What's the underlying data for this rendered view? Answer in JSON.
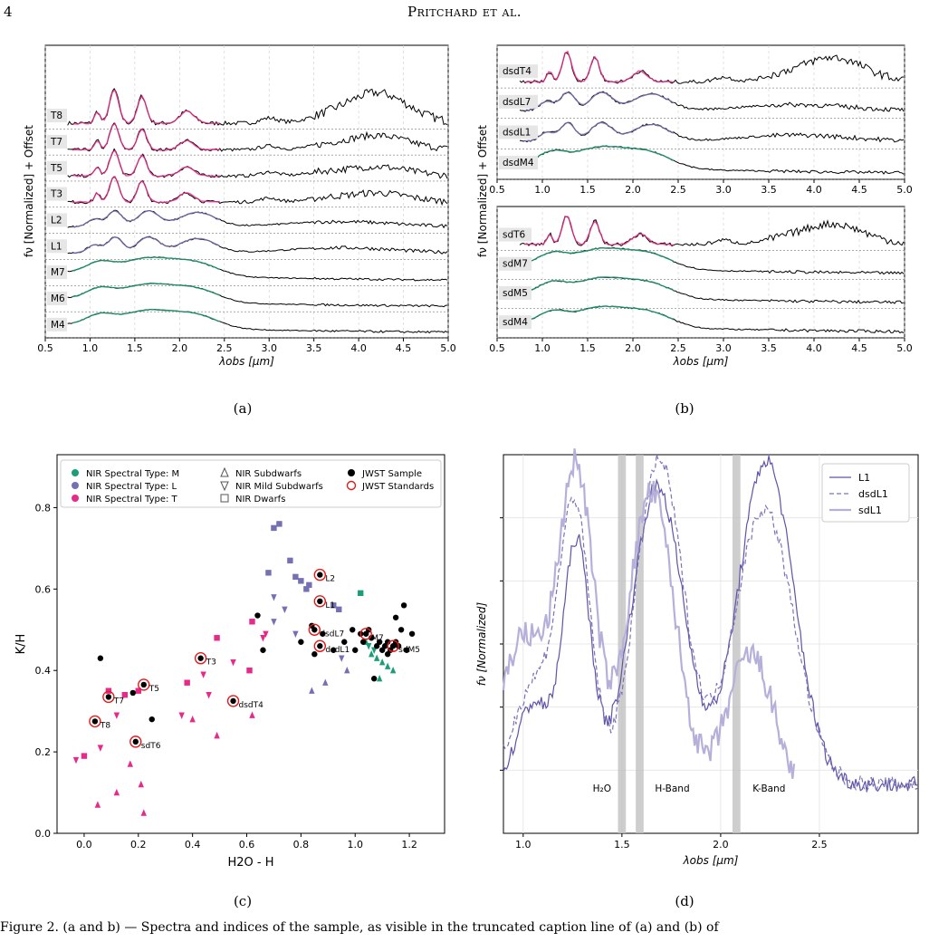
{
  "header": {
    "page_number": "4",
    "running_head": "Pritchard et al."
  },
  "panels": {
    "a": {
      "label": "(a)"
    },
    "b": {
      "label": "(b)"
    },
    "c": {
      "label": "(c)"
    },
    "d": {
      "label": "(d)"
    }
  },
  "caption": "Figure 2. (a and b) — Spectra and indices of the sample, as visible in the truncated caption line of (a) and (b) of",
  "chart_data": [
    {
      "type": "line",
      "panel": "a",
      "xlabel": "λobs [µm]",
      "ylabel": "fν [Normalized] + Offset",
      "xlim": [
        0.5,
        5.0
      ],
      "xticks": [
        "0.5",
        "1.0",
        "1.5",
        "2.0",
        "2.5",
        "3.0",
        "3.5",
        "4.0",
        "4.5",
        "5.0"
      ],
      "series": [
        {
          "name": "T8",
          "color": "#e7298a"
        },
        {
          "name": "T7",
          "color": "#e7298a"
        },
        {
          "name": "T5",
          "color": "#e7298a"
        },
        {
          "name": "T3",
          "color": "#e7298a"
        },
        {
          "name": "L2",
          "color": "#7570b3"
        },
        {
          "name": "L1",
          "color": "#7570b3"
        },
        {
          "name": "M7",
          "color": "#1b9e77"
        },
        {
          "name": "M6",
          "color": "#1b9e77"
        },
        {
          "name": "M4",
          "color": "#1b9e77"
        }
      ]
    },
    {
      "type": "line",
      "panel": "b-top",
      "xlabel": "",
      "ylabel": "fν [Normalized] + Offset",
      "xlim": [
        0.5,
        5.0
      ],
      "xticks": [
        "0.5",
        "1.0",
        "1.5",
        "2.0",
        "2.5",
        "3.0",
        "3.5",
        "4.0",
        "4.5",
        "5.0"
      ],
      "series": [
        {
          "name": "dsdT4",
          "color": "#e7298a"
        },
        {
          "name": "dsdL7",
          "color": "#7570b3"
        },
        {
          "name": "dsdL1",
          "color": "#7570b3"
        },
        {
          "name": "dsdM4",
          "color": "#1b9e77"
        }
      ]
    },
    {
      "type": "line",
      "panel": "b-bottom",
      "xlabel": "λobs [µm]",
      "xlim": [
        0.5,
        5.0
      ],
      "xticks": [
        "0.5",
        "1.0",
        "1.5",
        "2.0",
        "2.5",
        "3.0",
        "3.5",
        "4.0",
        "4.5",
        "5.0"
      ],
      "series": [
        {
          "name": "sdT6",
          "color": "#e7298a"
        },
        {
          "name": "sdM7",
          "color": "#1b9e77"
        },
        {
          "name": "sdM5",
          "color": "#1b9e77"
        },
        {
          "name": "sdM4",
          "color": "#1b9e77"
        }
      ]
    },
    {
      "type": "scatter",
      "panel": "c",
      "xlabel": "H2O - H",
      "ylabel": "K/H",
      "xlim": [
        -0.1,
        1.33
      ],
      "ylim": [
        0.0,
        0.93
      ],
      "xticks": [
        "0.0",
        "0.2",
        "0.4",
        "0.6",
        "0.8",
        "1.0",
        "1.2"
      ],
      "yticks": [
        "0.0",
        "0.2",
        "0.4",
        "0.6",
        "0.8"
      ],
      "legend": [
        {
          "label": "NIR Spectral Type: M",
          "marker": "circle",
          "color": "#1b9e77"
        },
        {
          "label": "NIR Spectral Type: L",
          "marker": "circle",
          "color": "#7570b3"
        },
        {
          "label": "NIR Spectral Type: T",
          "marker": "circle",
          "color": "#e7298a"
        },
        {
          "label": "NIR Subdwarfs",
          "marker": "triangle-up",
          "color": "#555555"
        },
        {
          "label": "NIR Mild Subdwarfs",
          "marker": "triangle-down",
          "color": "#555555"
        },
        {
          "label": "NIR Dwarfs",
          "marker": "square",
          "color": "#555555"
        },
        {
          "label": "JWST Sample",
          "marker": "circle",
          "color": "#000000"
        },
        {
          "label": "JWST Standards",
          "marker": "ring",
          "color": "#e41a1c"
        }
      ],
      "standards": [
        {
          "name": "T8",
          "x": 0.04,
          "y": 0.275
        },
        {
          "name": "T7",
          "x": 0.09,
          "y": 0.335
        },
        {
          "name": "T5",
          "x": 0.22,
          "y": 0.365
        },
        {
          "name": "sdT6",
          "x": 0.19,
          "y": 0.225
        },
        {
          "name": "T3",
          "x": 0.43,
          "y": 0.43
        },
        {
          "name": "dsdT4",
          "x": 0.55,
          "y": 0.325
        },
        {
          "name": "L2",
          "x": 0.87,
          "y": 0.635
        },
        {
          "name": "L1",
          "x": 0.87,
          "y": 0.57
        },
        {
          "name": "dsdL7",
          "x": 0.85,
          "y": 0.5
        },
        {
          "name": "dsdL1",
          "x": 0.87,
          "y": 0.46
        },
        {
          "name": "M7",
          "x": 1.04,
          "y": 0.49
        },
        {
          "name": "sdM5",
          "x": 1.14,
          "y": 0.46
        }
      ],
      "points": [
        {
          "c": "T",
          "m": "tri-down",
          "x": -0.03,
          "y": 0.18
        },
        {
          "c": "T",
          "m": "square",
          "x": 0.0,
          "y": 0.19
        },
        {
          "c": "T",
          "m": "tri-up",
          "x": 0.05,
          "y": 0.07
        },
        {
          "c": "T",
          "m": "tri-down",
          "x": 0.06,
          "y": 0.21
        },
        {
          "c": "T",
          "m": "square",
          "x": 0.09,
          "y": 0.35
        },
        {
          "c": "T",
          "m": "tri-up",
          "x": 0.12,
          "y": 0.1
        },
        {
          "c": "T",
          "m": "tri-down",
          "x": 0.12,
          "y": 0.29
        },
        {
          "c": "T",
          "m": "square",
          "x": 0.15,
          "y": 0.34
        },
        {
          "c": "T",
          "m": "tri-up",
          "x": 0.17,
          "y": 0.17
        },
        {
          "c": "T",
          "m": "square",
          "x": 0.2,
          "y": 0.35
        },
        {
          "c": "T",
          "m": "tri-up",
          "x": 0.21,
          "y": 0.12
        },
        {
          "c": "T",
          "m": "tri-up",
          "x": 0.22,
          "y": 0.05
        },
        {
          "c": "T",
          "m": "tri-down",
          "x": 0.36,
          "y": 0.29
        },
        {
          "c": "T",
          "m": "square",
          "x": 0.38,
          "y": 0.37
        },
        {
          "c": "T",
          "m": "tri-up",
          "x": 0.4,
          "y": 0.28
        },
        {
          "c": "T",
          "m": "tri-down",
          "x": 0.44,
          "y": 0.39
        },
        {
          "c": "T",
          "m": "tri-down",
          "x": 0.46,
          "y": 0.34
        },
        {
          "c": "T",
          "m": "tri-up",
          "x": 0.49,
          "y": 0.24
        },
        {
          "c": "T",
          "m": "square",
          "x": 0.49,
          "y": 0.48
        },
        {
          "c": "T",
          "m": "tri-down",
          "x": 0.55,
          "y": 0.42
        },
        {
          "c": "T",
          "m": "square",
          "x": 0.61,
          "y": 0.4
        },
        {
          "c": "T",
          "m": "tri-up",
          "x": 0.62,
          "y": 0.29
        },
        {
          "c": "T",
          "m": "square",
          "x": 0.62,
          "y": 0.52
        },
        {
          "c": "T",
          "m": "tri-down",
          "x": 0.66,
          "y": 0.48
        },
        {
          "c": "T",
          "m": "tri-down",
          "x": 0.67,
          "y": 0.49
        },
        {
          "c": "L",
          "m": "square",
          "x": 0.68,
          "y": 0.64
        },
        {
          "c": "L",
          "m": "square",
          "x": 0.7,
          "y": 0.75
        },
        {
          "c": "L",
          "m": "square",
          "x": 0.72,
          "y": 0.76
        },
        {
          "c": "L",
          "m": "tri-down",
          "x": 0.7,
          "y": 0.58
        },
        {
          "c": "L",
          "m": "tri-down",
          "x": 0.7,
          "y": 0.52
        },
        {
          "c": "L",
          "m": "tri-down",
          "x": 0.74,
          "y": 0.55
        },
        {
          "c": "L",
          "m": "square",
          "x": 0.76,
          "y": 0.67
        },
        {
          "c": "L",
          "m": "square",
          "x": 0.78,
          "y": 0.63
        },
        {
          "c": "L",
          "m": "square",
          "x": 0.8,
          "y": 0.62
        },
        {
          "c": "L",
          "m": "square",
          "x": 0.82,
          "y": 0.6
        },
        {
          "c": "L",
          "m": "square",
          "x": 0.83,
          "y": 0.61
        },
        {
          "c": "L",
          "m": "tri-down",
          "x": 0.78,
          "y": 0.49
        },
        {
          "c": "L",
          "m": "tri-up",
          "x": 0.84,
          "y": 0.35
        },
        {
          "c": "L",
          "m": "tri-up",
          "x": 0.89,
          "y": 0.37
        },
        {
          "c": "L",
          "m": "square",
          "x": 0.92,
          "y": 0.56
        },
        {
          "c": "L",
          "m": "square",
          "x": 0.94,
          "y": 0.55
        },
        {
          "c": "L",
          "m": "tri-up",
          "x": 0.97,
          "y": 0.4
        },
        {
          "c": "L",
          "m": "tri-down",
          "x": 0.95,
          "y": 0.43
        },
        {
          "c": "M",
          "m": "square",
          "x": 1.02,
          "y": 0.59
        },
        {
          "c": "M",
          "m": "tri-up",
          "x": 1.04,
          "y": 0.47
        },
        {
          "c": "M",
          "m": "tri-up",
          "x": 1.06,
          "y": 0.44
        },
        {
          "c": "M",
          "m": "tri-up",
          "x": 1.08,
          "y": 0.43
        },
        {
          "c": "M",
          "m": "tri-up",
          "x": 1.1,
          "y": 0.42
        },
        {
          "c": "M",
          "m": "tri-up",
          "x": 1.12,
          "y": 0.41
        },
        {
          "c": "M",
          "m": "tri-up",
          "x": 1.09,
          "y": 0.38
        },
        {
          "c": "M",
          "m": "tri-down",
          "x": 1.05,
          "y": 0.46
        },
        {
          "c": "M",
          "m": "tri-down",
          "x": 1.07,
          "y": 0.45
        },
        {
          "c": "M",
          "m": "tri-up",
          "x": 1.14,
          "y": 0.4
        },
        {
          "c": "J",
          "m": "dot",
          "x": 0.06,
          "y": 0.43
        },
        {
          "c": "J",
          "m": "dot",
          "x": 0.18,
          "y": 0.345
        },
        {
          "c": "J",
          "m": "dot",
          "x": 0.25,
          "y": 0.28
        },
        {
          "c": "J",
          "m": "dot",
          "x": 0.64,
          "y": 0.535
        },
        {
          "c": "J",
          "m": "dot",
          "x": 0.66,
          "y": 0.45
        },
        {
          "c": "J",
          "m": "dot",
          "x": 0.8,
          "y": 0.47
        },
        {
          "c": "J",
          "m": "dot",
          "x": 0.84,
          "y": 0.51
        },
        {
          "c": "J",
          "m": "dot",
          "x": 0.85,
          "y": 0.44
        },
        {
          "c": "J",
          "m": "dot",
          "x": 0.88,
          "y": 0.49
        },
        {
          "c": "J",
          "m": "dot",
          "x": 0.92,
          "y": 0.45
        },
        {
          "c": "J",
          "m": "dot",
          "x": 0.96,
          "y": 0.47
        },
        {
          "c": "J",
          "m": "dot",
          "x": 0.99,
          "y": 0.5
        },
        {
          "c": "J",
          "m": "dot",
          "x": 1.0,
          "y": 0.45
        },
        {
          "c": "J",
          "m": "dot",
          "x": 1.02,
          "y": 0.49
        },
        {
          "c": "J",
          "m": "dot",
          "x": 1.03,
          "y": 0.47
        },
        {
          "c": "J",
          "m": "dot",
          "x": 1.05,
          "y": 0.5
        },
        {
          "c": "J",
          "m": "dot",
          "x": 1.06,
          "y": 0.48
        },
        {
          "c": "J",
          "m": "dot",
          "x": 1.08,
          "y": 0.46
        },
        {
          "c": "J",
          "m": "dot",
          "x": 1.09,
          "y": 0.47
        },
        {
          "c": "J",
          "m": "dot",
          "x": 1.1,
          "y": 0.45
        },
        {
          "c": "J",
          "m": "dot",
          "x": 1.11,
          "y": 0.46
        },
        {
          "c": "J",
          "m": "dot",
          "x": 1.12,
          "y": 0.47
        },
        {
          "c": "J",
          "m": "dot",
          "x": 1.13,
          "y": 0.45
        },
        {
          "c": "J",
          "m": "dot",
          "x": 1.15,
          "y": 0.47
        },
        {
          "c": "J",
          "m": "dot",
          "x": 1.16,
          "y": 0.46
        },
        {
          "c": "J",
          "m": "dot",
          "x": 1.17,
          "y": 0.5
        },
        {
          "c": "J",
          "m": "dot",
          "x": 1.18,
          "y": 0.56
        },
        {
          "c": "J",
          "m": "dot",
          "x": 1.19,
          "y": 0.45
        },
        {
          "c": "J",
          "m": "dot",
          "x": 1.21,
          "y": 0.49
        },
        {
          "c": "J",
          "m": "dot",
          "x": 1.15,
          "y": 0.53
        },
        {
          "c": "J",
          "m": "dot",
          "x": 1.07,
          "y": 0.38
        },
        {
          "c": "J",
          "m": "dot",
          "x": 1.12,
          "y": 0.44
        }
      ]
    },
    {
      "type": "line",
      "panel": "d",
      "xlabel": "λobs [µm]",
      "ylabel": "fν [Normalized]",
      "xlim": [
        0.9,
        3.0
      ],
      "xticks": [
        "1.0",
        "1.5",
        "2.0",
        "2.5"
      ],
      "bands": [
        {
          "label": "H₂O",
          "x": [
            1.48,
            1.52
          ]
        },
        {
          "label": "H-Band",
          "x": [
            1.57,
            1.61
          ]
        },
        {
          "label": "K-Band",
          "x": [
            2.06,
            2.1
          ]
        }
      ],
      "legend_position": "top-right",
      "series": [
        {
          "name": "L1",
          "color": "#5e54a8",
          "style": "solid"
        },
        {
          "name": "dsdL1",
          "color": "#7b74b8",
          "style": "dashed"
        },
        {
          "name": "sdL1",
          "color": "#b5b0da",
          "style": "solid-thick"
        }
      ]
    }
  ]
}
